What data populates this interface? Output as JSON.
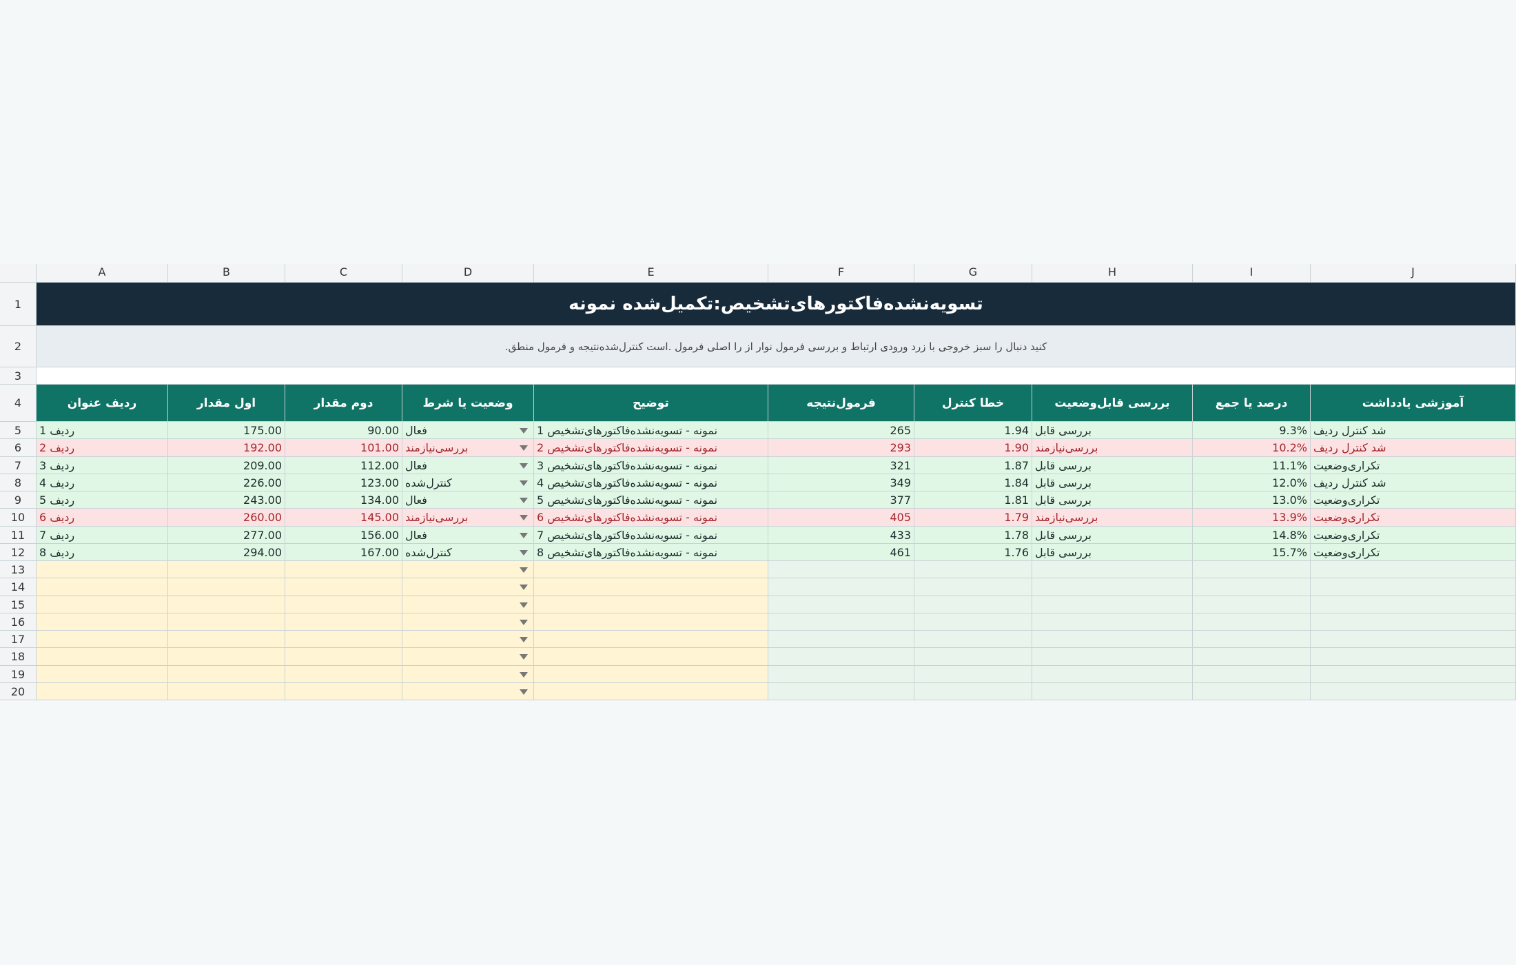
{
  "header": {
    "title": "تسویه‌نشده‌فاکتورهای‌تشخیص:تکمیل‌شده نمونه",
    "subtitle": ".کنید دنبال را سبز خروجی با زرد ورودی ارتباط و بررسی فرمول نوار از را اصلی فرمول .است کنترل‌شده‌نتیجه و فرمول منطق"
  },
  "columns": [
    "A",
    "B",
    "C",
    "D",
    "E",
    "F",
    "G",
    "H",
    "I",
    "J"
  ],
  "row_numbers": [
    "1",
    "2",
    "3",
    "4",
    "5",
    "6",
    "7",
    "8",
    "9",
    "10",
    "11",
    "12",
    "13",
    "14",
    "15",
    "16",
    "17",
    "18",
    "19",
    "20"
  ],
  "table": {
    "headers": [
      "ردیف عنوان",
      "اول مقدار",
      "دوم مقدار",
      "وضعیت یا شرط",
      "توضیح",
      "فرمول‌نتیجه",
      "خطا کنترل",
      "بررسی قابل‌وضعیت",
      "درصد یا جمع",
      "آموزشی یادداشت"
    ],
    "rows": [
      {
        "fill": "#dff7e4",
        "color": "#1d2b2b",
        "cells": [
          "1 ردیف",
          "175.00",
          "90.00",
          "فعال",
          "1 نمونه - تسویه‌نشده‌فاکتورهای‌تشخیص",
          "265",
          "1.94",
          "بررسی قابل",
          "9.3%",
          "شد کنترل ردیف"
        ]
      },
      {
        "fill": "#fde2e4",
        "color": "#a3262a",
        "cells": [
          "2 ردیف",
          "192.00",
          "101.00",
          "بررسی‌نیازمند",
          "2 نمونه - تسویه‌نشده‌فاکتورهای‌تشخیص",
          "293",
          "1.90",
          "بررسی‌نیازمند",
          "10.2%",
          "شد کنترل ردیف"
        ]
      },
      {
        "fill": "#dff7e4",
        "color": "#1d2b2b",
        "cells": [
          "3 ردیف",
          "209.00",
          "112.00",
          "فعال",
          "3 نمونه - تسویه‌نشده‌فاکتورهای‌تشخیص",
          "321",
          "1.87",
          "بررسی قابل",
          "11.1%",
          "تکراری‌وضعیت"
        ]
      },
      {
        "fill": "#dff7e4",
        "color": "#1d2b2b",
        "cells": [
          "4 ردیف",
          "226.00",
          "123.00",
          "کنترل‌شده",
          "4 نمونه - تسویه‌نشده‌فاکتورهای‌تشخیص",
          "349",
          "1.84",
          "بررسی قابل",
          "12.0%",
          "شد کنترل ردیف"
        ]
      },
      {
        "fill": "#dff7e4",
        "color": "#1d2b2b",
        "cells": [
          "5 ردیف",
          "243.00",
          "134.00",
          "فعال",
          "5 نمونه - تسویه‌نشده‌فاکتورهای‌تشخیص",
          "377",
          "1.81",
          "بررسی قابل",
          "13.0%",
          "تکراری‌وضعیت"
        ]
      },
      {
        "fill": "#fde2e4",
        "color": "#a3262a",
        "cells": [
          "6 ردیف",
          "260.00",
          "145.00",
          "بررسی‌نیازمند",
          "6 نمونه - تسویه‌نشده‌فاکتورهای‌تشخیص",
          "405",
          "1.79",
          "بررسی‌نیازمند",
          "13.9%",
          "تکراری‌وضعیت"
        ]
      },
      {
        "fill": "#dff7e4",
        "color": "#1d2b2b",
        "cells": [
          "7 ردیف",
          "277.00",
          "156.00",
          "فعال",
          "7 نمونه - تسویه‌نشده‌فاکتورهای‌تشخیص",
          "433",
          "1.78",
          "بررسی قابل",
          "14.8%",
          "تکراری‌وضعیت"
        ]
      },
      {
        "fill": "#dff7e4",
        "color": "#1d2b2b",
        "cells": [
          "8 ردیف",
          "294.00",
          "167.00",
          "کنترل‌شده",
          "8 نمونه - تسویه‌نشده‌فاکتورهای‌تشخیص",
          "461",
          "1.76",
          "بررسی قابل",
          "15.7%",
          "تکراری‌وضعیت"
        ]
      }
    ]
  }
}
